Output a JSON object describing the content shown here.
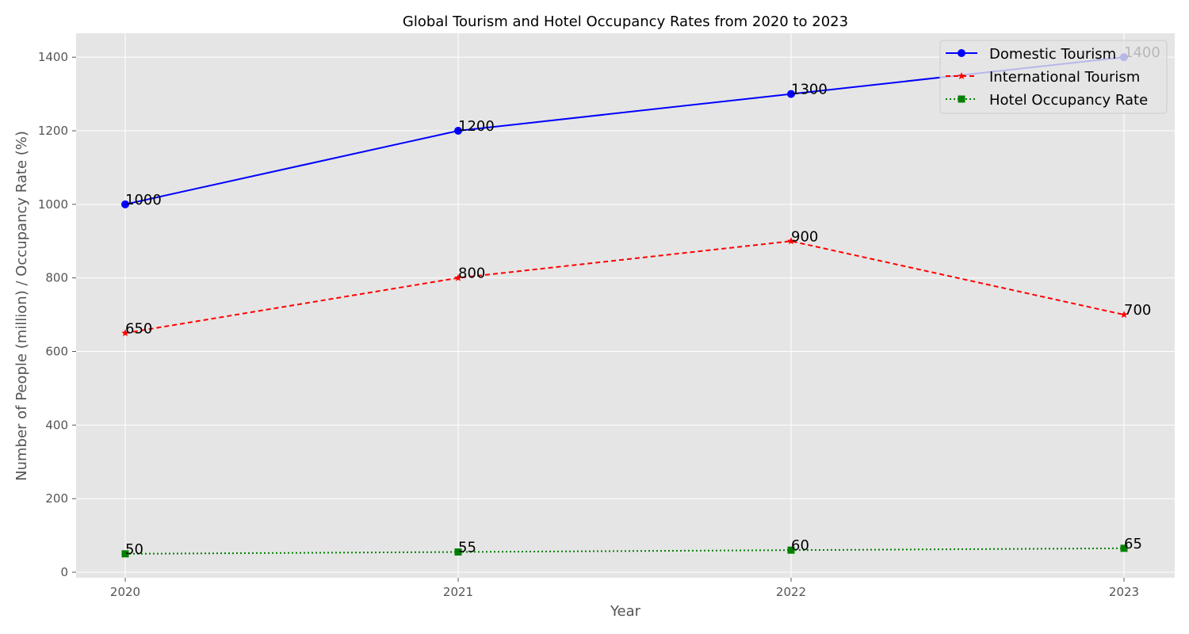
{
  "chart_data": {
    "type": "line",
    "title": "Global Tourism and Hotel Occupancy Rates from 2020 to 2023",
    "xlabel": "Year",
    "ylabel": "Number of People (million) / Occupancy Rate (%)",
    "categories": [
      "2020",
      "2021",
      "2022",
      "2023"
    ],
    "ylim": [
      -15,
      1465
    ],
    "yticks": [
      0,
      200,
      400,
      600,
      800,
      1000,
      1200,
      1400
    ],
    "grid": true,
    "legend_position": "top-right",
    "series": [
      {
        "name": "Domestic Tourism",
        "values": [
          1000,
          1200,
          1300,
          1400
        ],
        "color": "#0000ff",
        "line_style": "solid",
        "marker": "circle"
      },
      {
        "name": "International Tourism",
        "values": [
          650,
          800,
          900,
          700
        ],
        "color": "#ff0000",
        "line_style": "dashed",
        "marker": "star"
      },
      {
        "name": "Hotel Occupancy Rate",
        "values": [
          50,
          55,
          60,
          65
        ],
        "color": "#008000",
        "line_style": "dotted",
        "marker": "square"
      }
    ],
    "colors": {
      "plot_background": "#e5e5e5",
      "grid": "#ffffff"
    }
  }
}
